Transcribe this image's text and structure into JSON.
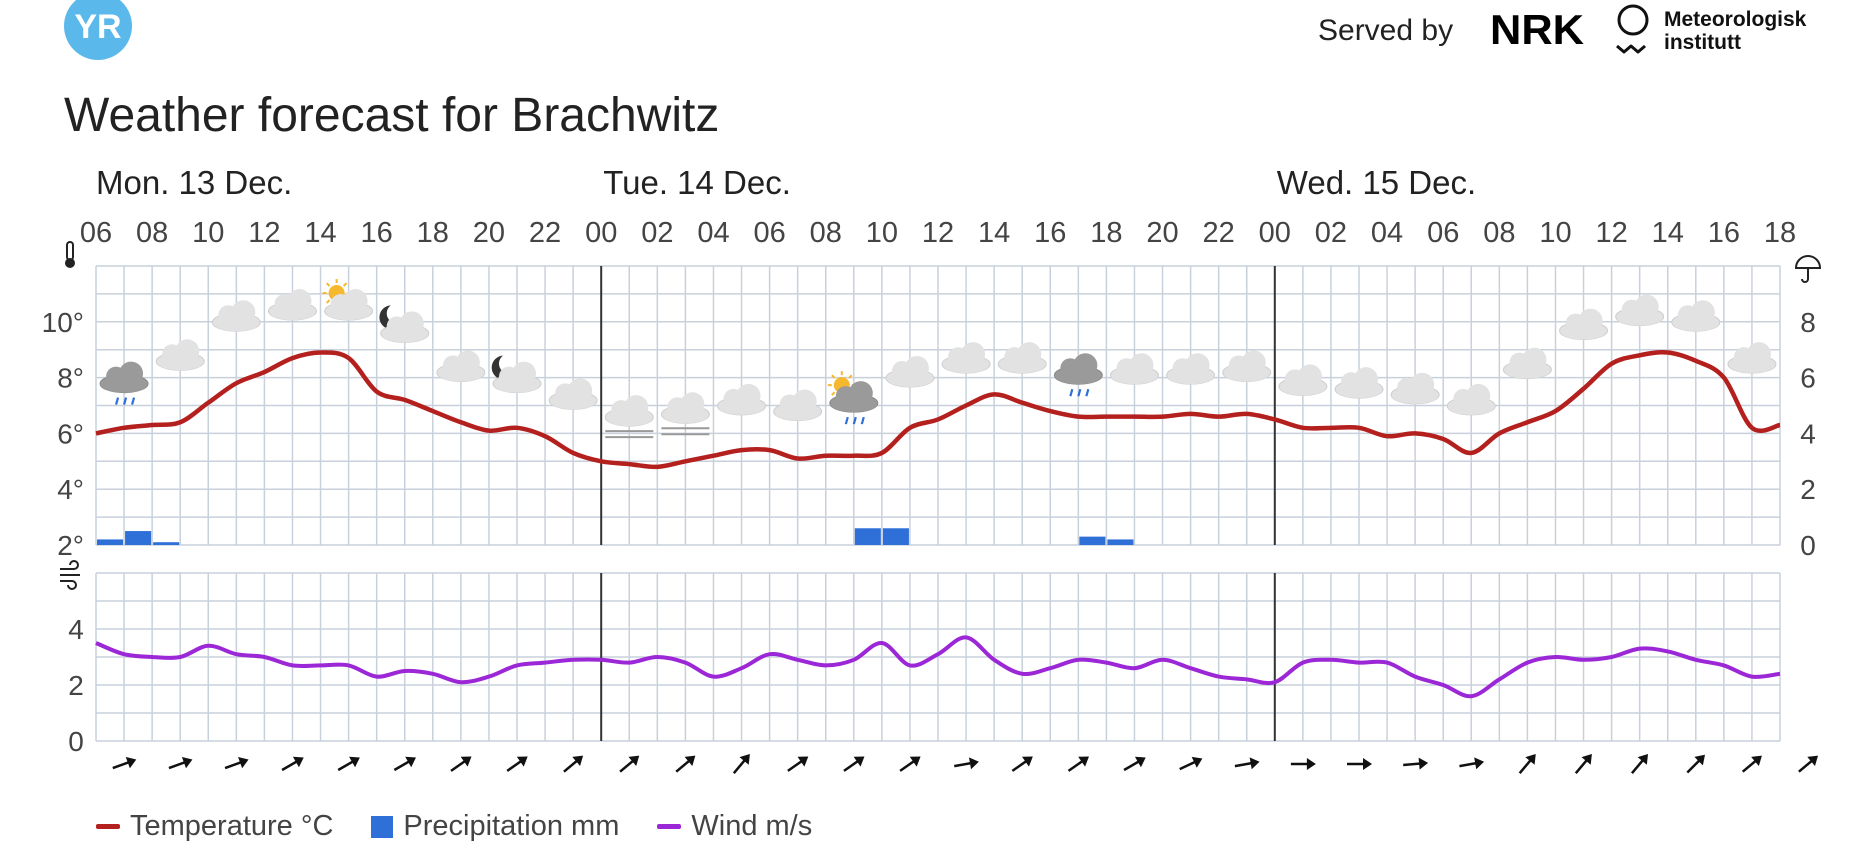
{
  "header": {
    "logo_text": "YR",
    "served_by": "Served by",
    "nrk_logo_text": "NRK",
    "met_logo_text": "Meteorologisk institutt",
    "title": "Weather forecast for Brachwitz"
  },
  "colors": {
    "temperature": "#B3201E",
    "precipitation": "#2F6FD8",
    "wind": "#9B27D6",
    "grid": "#C8D1DB",
    "day_divider": "#333333",
    "logo": "#5BB8EA"
  },
  "icons": [
    "thermometer-icon",
    "umbrella-icon",
    "wind-icon"
  ],
  "chart_data": {
    "type": "line",
    "time_start": "Mon. 13 Dec. 06",
    "day_labels": [
      {
        "label": "Mon. 13 Dec.",
        "hour_index": 0
      },
      {
        "label": "Tue. 14 Dec.",
        "hour_index": 18
      },
      {
        "label": "Wed. 15 Dec.",
        "hour_index": 42
      }
    ],
    "hour_ticks": [
      "06",
      "08",
      "10",
      "12",
      "14",
      "16",
      "18",
      "20",
      "22",
      "00",
      "02",
      "04",
      "06",
      "08",
      "10",
      "12",
      "14",
      "16",
      "18",
      "20",
      "22",
      "00",
      "02",
      "04",
      "06",
      "08",
      "10",
      "12",
      "14",
      "16",
      "18"
    ],
    "temp_axis": {
      "ticks": [
        "2°",
        "4°",
        "6°",
        "8°",
        "10°"
      ],
      "range": [
        2,
        12
      ]
    },
    "precip_axis": {
      "ticks": [
        "0",
        "2",
        "4",
        "6",
        "8"
      ],
      "range": [
        0,
        10
      ]
    },
    "wind_axis": {
      "ticks": [
        "0",
        "2",
        "4"
      ],
      "range": [
        0,
        6
      ]
    },
    "series": [
      {
        "name": "Temperature °C",
        "type": "line",
        "values": [
          6.0,
          6.2,
          6.3,
          6.4,
          7.1,
          7.8,
          8.2,
          8.7,
          8.9,
          8.7,
          7.5,
          7.2,
          6.8,
          6.4,
          6.1,
          6.2,
          5.9,
          5.3,
          5.0,
          4.9,
          4.8,
          5.0,
          5.2,
          5.4,
          5.4,
          5.1,
          5.2,
          5.2,
          5.3,
          6.2,
          6.5,
          7.0,
          7.4,
          7.1,
          6.8,
          6.6,
          6.6,
          6.6,
          6.6,
          6.7,
          6.6,
          6.7,
          6.5,
          6.2,
          6.2,
          6.2,
          5.9,
          6.0,
          5.8,
          5.3,
          6.0,
          6.4,
          6.8,
          7.6,
          8.5,
          8.8,
          8.9,
          8.6,
          8.0,
          6.2,
          6.3
        ]
      },
      {
        "name": "Precipitation mm",
        "type": "bar",
        "values": [
          0.2,
          0.5,
          0.1,
          0,
          0,
          0,
          0,
          0,
          0,
          0,
          0,
          0,
          0,
          0,
          0,
          0,
          0,
          0,
          0,
          0,
          0,
          0,
          0,
          0,
          0,
          0,
          0,
          0.6,
          0.6,
          0,
          0,
          0,
          0,
          0,
          0,
          0.3,
          0.2,
          0,
          0,
          0,
          0,
          0,
          0,
          0,
          0,
          0,
          0,
          0,
          0,
          0,
          0,
          0,
          0,
          0,
          0,
          0,
          0,
          0,
          0,
          0
        ]
      },
      {
        "name": "Wind m/s",
        "type": "line",
        "values": [
          3.5,
          3.1,
          3.0,
          3.0,
          3.4,
          3.1,
          3.0,
          2.7,
          2.7,
          2.7,
          2.3,
          2.5,
          2.4,
          2.1,
          2.3,
          2.7,
          2.8,
          2.9,
          2.9,
          2.8,
          3.0,
          2.8,
          2.3,
          2.6,
          3.1,
          2.9,
          2.7,
          2.9,
          3.5,
          2.7,
          3.1,
          3.7,
          2.9,
          2.4,
          2.6,
          2.9,
          2.8,
          2.6,
          2.9,
          2.6,
          2.3,
          2.2,
          2.1,
          2.8,
          2.9,
          2.8,
          2.8,
          2.3,
          2.0,
          1.6,
          2.2,
          2.8,
          3.0,
          2.9,
          3.0,
          3.3,
          3.2,
          2.9,
          2.7,
          2.3,
          2.4
        ]
      }
    ],
    "weather_symbols": [
      {
        "hour_index": 1,
        "type": "rain-cloud",
        "temp": 8.0
      },
      {
        "hour_index": 3,
        "type": "cloud",
        "temp": 8.8
      },
      {
        "hour_index": 5,
        "type": "cloud",
        "temp": 10.2
      },
      {
        "hour_index": 7,
        "type": "cloud",
        "temp": 10.6
      },
      {
        "hour_index": 9,
        "type": "partly-sunny-cloud",
        "temp": 10.6
      },
      {
        "hour_index": 11,
        "type": "moon-cloud",
        "temp": 9.8
      },
      {
        "hour_index": 13,
        "type": "cloud",
        "temp": 8.4
      },
      {
        "hour_index": 15,
        "type": "moon-cloud",
        "temp": 8.0
      },
      {
        "hour_index": 17,
        "type": "cloud",
        "temp": 7.4
      },
      {
        "hour_index": 19,
        "type": "fog-cloud",
        "temp": 6.8
      },
      {
        "hour_index": 21,
        "type": "fog-cloud",
        "temp": 6.9
      },
      {
        "hour_index": 23,
        "type": "cloud",
        "temp": 7.2
      },
      {
        "hour_index": 25,
        "type": "cloud",
        "temp": 7.0
      },
      {
        "hour_index": 27,
        "type": "partly-sunny-rain",
        "temp": 7.3
      },
      {
        "hour_index": 29,
        "type": "cloud",
        "temp": 8.2
      },
      {
        "hour_index": 31,
        "type": "cloud",
        "temp": 8.7
      },
      {
        "hour_index": 33,
        "type": "cloud",
        "temp": 8.7
      },
      {
        "hour_index": 35,
        "type": "rain-cloud",
        "temp": 8.3
      },
      {
        "hour_index": 37,
        "type": "cloud",
        "temp": 8.3
      },
      {
        "hour_index": 39,
        "type": "cloud",
        "temp": 8.3
      },
      {
        "hour_index": 41,
        "type": "cloud",
        "temp": 8.4
      },
      {
        "hour_index": 43,
        "type": "cloud",
        "temp": 7.9
      },
      {
        "hour_index": 45,
        "type": "cloud",
        "temp": 7.8
      },
      {
        "hour_index": 47,
        "type": "cloud",
        "temp": 7.6
      },
      {
        "hour_index": 49,
        "type": "cloud",
        "temp": 7.2
      },
      {
        "hour_index": 51,
        "type": "cloud",
        "temp": 8.5
      },
      {
        "hour_index": 53,
        "type": "cloud",
        "temp": 9.9
      },
      {
        "hour_index": 55,
        "type": "cloud",
        "temp": 10.4
      },
      {
        "hour_index": 57,
        "type": "cloud",
        "temp": 10.2
      },
      {
        "hour_index": 59,
        "type": "cloud",
        "temp": 8.7
      }
    ],
    "wind_directions_deg": [
      70,
      70,
      70,
      60,
      60,
      60,
      55,
      55,
      50,
      50,
      50,
      40,
      55,
      55,
      55,
      80,
      55,
      55,
      60,
      65,
      80,
      90,
      90,
      85,
      80,
      40,
      40,
      40,
      45,
      50,
      50
    ],
    "grid": true,
    "legend_position": "bottom-left"
  },
  "legend": {
    "temperature_label": "Temperature °C",
    "precipitation_label": "Precipitation mm",
    "wind_label": "Wind m/s"
  }
}
